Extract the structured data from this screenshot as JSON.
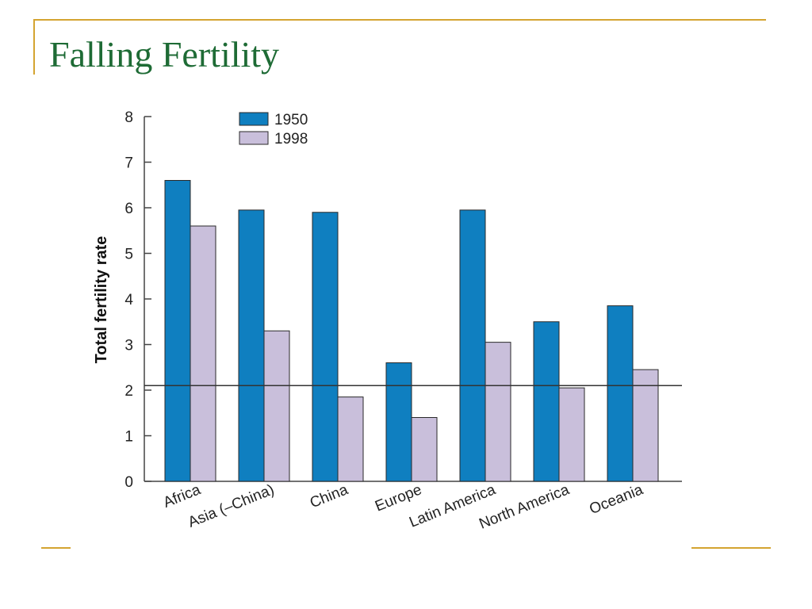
{
  "slide": {
    "title": "Falling Fertility",
    "accent_color": "#d4a431",
    "title_color": "#1e6b35"
  },
  "chart_data": {
    "type": "bar",
    "categories": [
      "Africa",
      "Asia (–China)",
      "China",
      "Europe",
      "Latin America",
      "North America",
      "Oceania"
    ],
    "series": [
      {
        "name": "1950",
        "color": "#0f7fc0",
        "values": [
          6.6,
          5.95,
          5.9,
          2.6,
          5.95,
          3.5,
          3.85
        ]
      },
      {
        "name": "1998",
        "color": "#c9bfdb",
        "values": [
          5.6,
          3.3,
          1.85,
          1.4,
          3.05,
          2.05,
          2.45
        ]
      }
    ],
    "ylabel": "Total fertility rate",
    "xlabel": "",
    "ylim": [
      0,
      8
    ],
    "yticks": [
      0,
      1,
      2,
      3,
      4,
      5,
      6,
      7,
      8
    ],
    "reference_line": 2.1,
    "legend_position": "top-left",
    "grid": false
  }
}
